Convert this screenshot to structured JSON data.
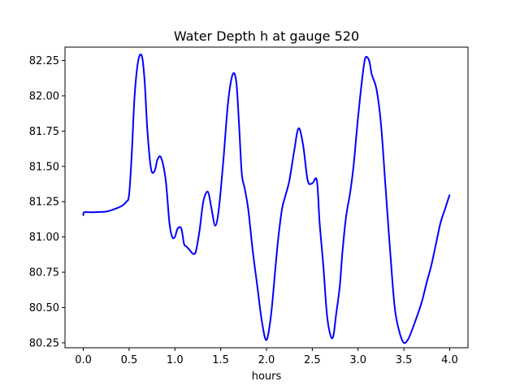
{
  "chart_data": {
    "type": "line",
    "title": "Water Depth h at gauge 520",
    "xlabel": "hours",
    "ylabel": "",
    "xlim": [
      -0.2,
      4.2
    ],
    "ylim": [
      80.215,
      82.345
    ],
    "xticks": [
      0.0,
      0.5,
      1.0,
      1.5,
      2.0,
      2.5,
      3.0,
      3.5,
      4.0
    ],
    "xtick_labels": [
      "0.0",
      "0.5",
      "1.0",
      "1.5",
      "2.0",
      "2.5",
      "3.0",
      "3.5",
      "4.0"
    ],
    "yticks": [
      80.25,
      80.5,
      80.75,
      81.0,
      81.25,
      81.5,
      81.75,
      82.0,
      82.25
    ],
    "ytick_labels": [
      "80.25",
      "80.50",
      "80.75",
      "81.00",
      "81.25",
      "81.50",
      "81.75",
      "82.00",
      "82.25"
    ],
    "grid": false,
    "colors": {
      "line": "#0000ff",
      "axes": "#000000",
      "background": "#ffffff"
    },
    "series": [
      {
        "x": [
          0.0,
          0.01,
          0.1,
          0.25,
          0.35,
          0.42,
          0.47,
          0.5,
          0.53,
          0.56,
          0.6,
          0.64,
          0.67,
          0.7,
          0.74,
          0.78,
          0.81,
          0.85,
          0.9,
          0.94,
          0.97,
          1.0,
          1.03,
          1.07,
          1.1,
          1.13,
          1.17,
          1.2,
          1.23,
          1.27,
          1.31,
          1.36,
          1.4,
          1.44,
          1.48,
          1.53,
          1.58,
          1.63,
          1.67,
          1.7,
          1.73,
          1.76,
          1.8,
          1.85,
          1.9,
          1.95,
          2.0,
          2.05,
          2.1,
          2.13,
          2.17,
          2.21,
          2.25,
          2.3,
          2.35,
          2.4,
          2.45,
          2.5,
          2.55,
          2.58,
          2.62,
          2.66,
          2.7,
          2.73,
          2.76,
          2.8,
          2.83,
          2.87,
          2.91,
          2.95,
          3.0,
          3.05,
          3.08,
          3.12,
          3.15,
          3.2,
          3.25,
          3.3,
          3.35,
          3.4,
          3.45,
          3.5,
          3.55,
          3.6,
          3.65,
          3.7,
          3.75,
          3.8,
          3.85,
          3.9,
          3.95,
          4.0
        ],
        "y": [
          81.15,
          81.175,
          81.175,
          81.18,
          81.2,
          81.22,
          81.25,
          81.3,
          81.6,
          82.0,
          82.25,
          82.28,
          82.1,
          81.75,
          81.48,
          81.47,
          81.55,
          81.56,
          81.4,
          81.1,
          81.0,
          81.0,
          81.06,
          81.06,
          80.95,
          80.93,
          80.9,
          80.88,
          80.9,
          81.05,
          81.25,
          81.32,
          81.2,
          81.08,
          81.2,
          81.55,
          81.95,
          82.15,
          82.1,
          81.8,
          81.45,
          81.35,
          81.2,
          80.9,
          80.65,
          80.4,
          80.27,
          80.45,
          80.8,
          81.0,
          81.2,
          81.3,
          81.4,
          81.6,
          81.77,
          81.65,
          81.4,
          81.38,
          81.4,
          81.1,
          80.8,
          80.45,
          80.3,
          80.3,
          80.45,
          80.65,
          80.9,
          81.15,
          81.3,
          81.5,
          81.85,
          82.15,
          82.27,
          82.25,
          82.15,
          82.05,
          81.8,
          81.35,
          80.9,
          80.5,
          80.33,
          80.25,
          80.28,
          80.36,
          80.45,
          80.55,
          80.68,
          80.8,
          80.95,
          81.1,
          81.2,
          81.3
        ]
      }
    ]
  }
}
